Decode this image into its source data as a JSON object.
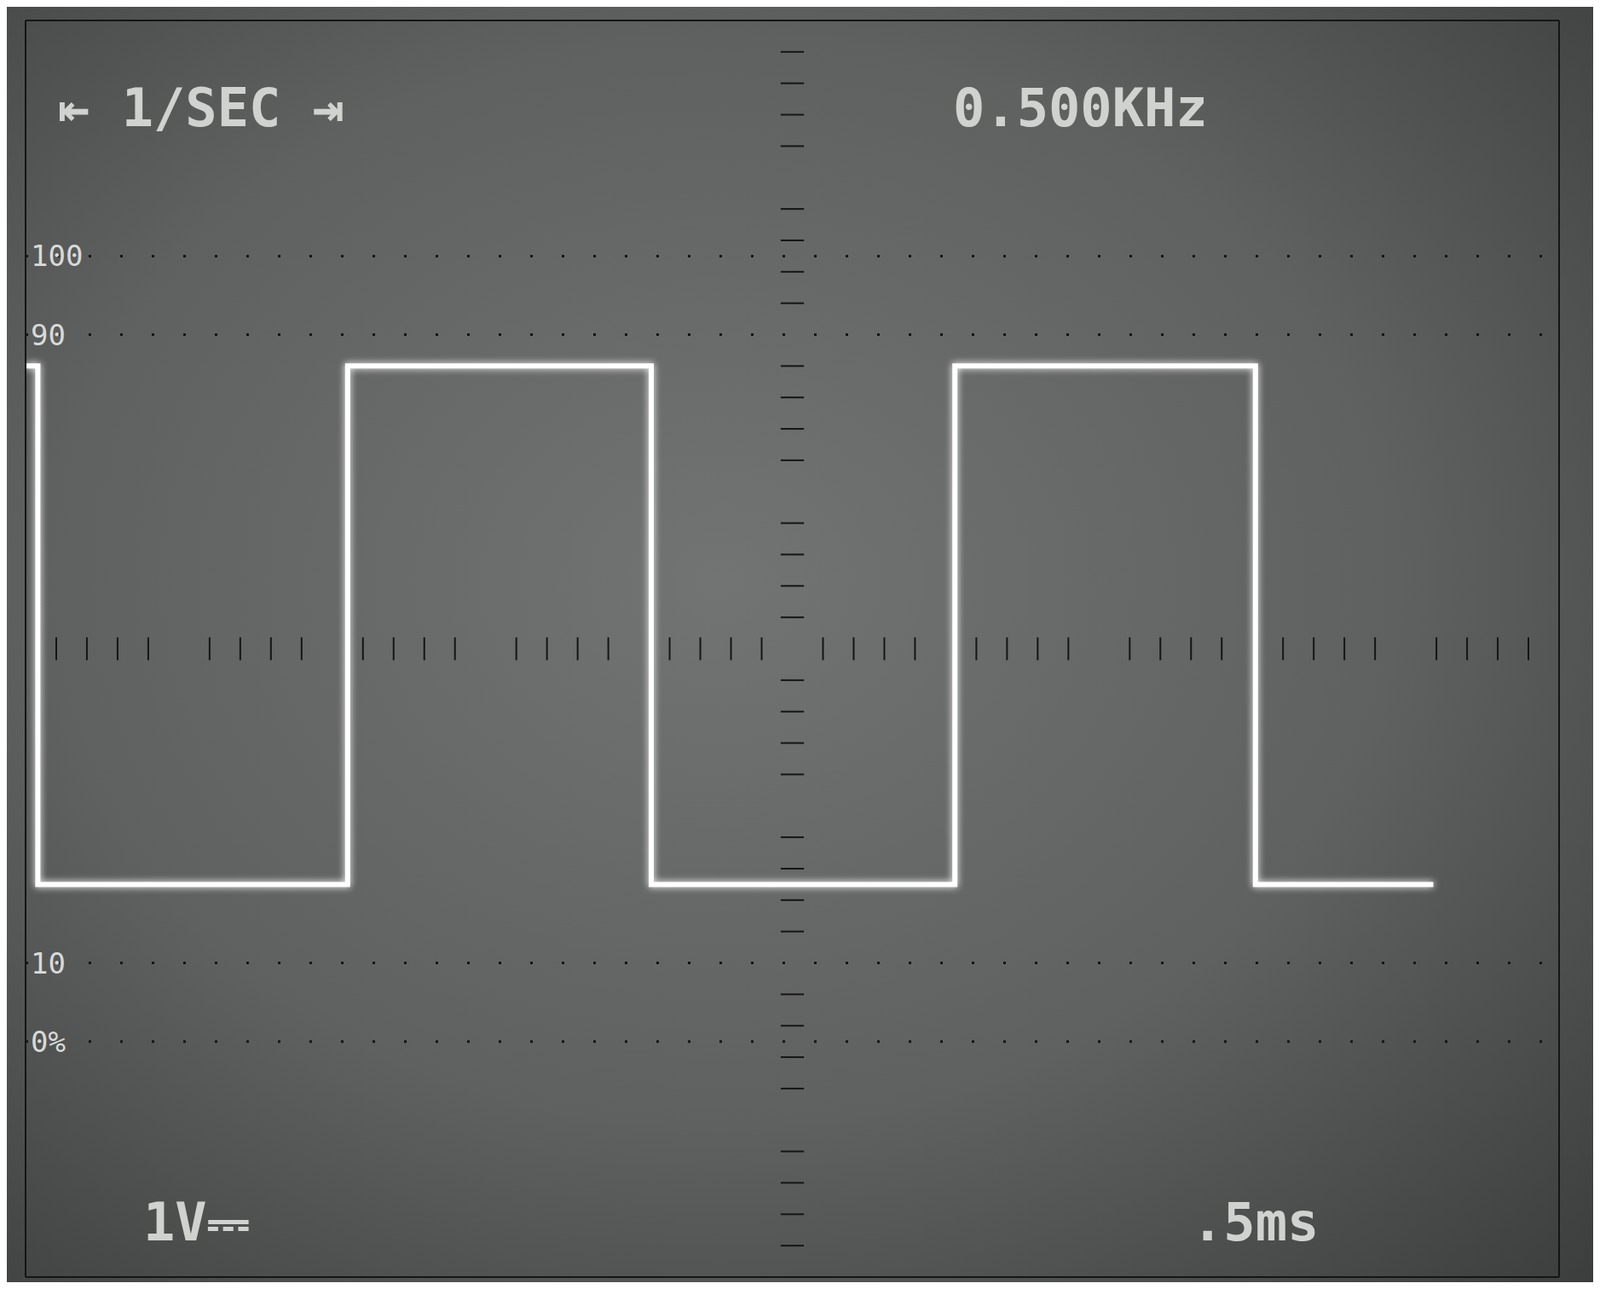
{
  "chart_data": {
    "type": "line",
    "x": [
      0,
      0.04,
      0.04,
      1.05,
      1.05,
      2.04,
      2.04,
      3.03,
      3.03,
      4.01,
      4.01,
      4.59
    ],
    "values": [
      1.8,
      1.8,
      -1.5,
      -1.5,
      1.8,
      1.8,
      -1.5,
      -1.5,
      1.8,
      1.8,
      -1.5,
      -1.5
    ],
    "color": "#ffffff",
    "line_style": "solid",
    "xlim": [
      0,
      5
    ],
    "xticks": [
      0,
      0.5,
      1,
      1.5,
      2,
      2.5,
      3,
      3.5,
      4,
      4.5,
      5
    ],
    "ylim": [
      -4,
      4
    ],
    "yticks": [
      -4,
      -3,
      -2,
      -1,
      0,
      1,
      2,
      3,
      4
    ],
    "grid": true,
    "tick_labels": false,
    "graticule_labels": [
      {
        "value": 2.5,
        "label": "100"
      },
      {
        "value": 2,
        "label": "90"
      },
      {
        "value": -2,
        "label": "10"
      },
      {
        "value": -2.5,
        "label": "0%"
      }
    ],
    "annotations": [
      {
        "text": "⇤ 1/SEC ⇥"
      },
      {
        "text": "0.500KHz"
      },
      {
        "text": "1V⎓"
      },
      {
        "text": ".5ms"
      }
    ]
  }
}
